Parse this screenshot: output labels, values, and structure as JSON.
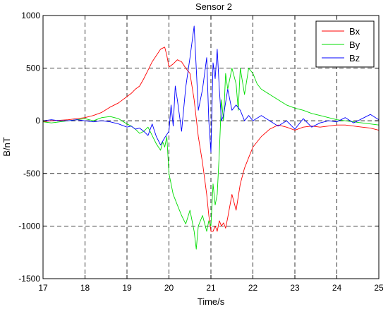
{
  "chart_data": {
    "type": "line",
    "title": "Sensor 2",
    "xlabel": "Time/s",
    "ylabel": "B/nT",
    "xlim": [
      17,
      25
    ],
    "ylim": [
      -1500,
      1000
    ],
    "xticks": [
      17,
      18,
      19,
      20,
      21,
      22,
      23,
      24,
      25
    ],
    "yticks": [
      -1500,
      -1000,
      -500,
      0,
      500,
      1000
    ],
    "grid": true,
    "legend_position": "top-right",
    "series": [
      {
        "name": "Bx",
        "color": "#ff0000",
        "x": [
          17.0,
          17.2,
          17.4,
          17.6,
          17.8,
          18.0,
          18.2,
          18.4,
          18.6,
          18.8,
          19.0,
          19.1,
          19.2,
          19.3,
          19.4,
          19.5,
          19.6,
          19.7,
          19.8,
          19.9,
          19.95,
          20.0,
          20.1,
          20.2,
          20.3,
          20.4,
          20.5,
          20.6,
          20.7,
          20.8,
          20.9,
          20.95,
          21.0,
          21.05,
          21.1,
          21.15,
          21.2,
          21.25,
          21.3,
          21.35,
          21.4,
          21.5,
          21.6,
          21.7,
          21.8,
          21.9,
          22.0,
          22.1,
          22.2,
          22.4,
          22.6,
          22.8,
          23.0,
          23.2,
          23.4,
          23.6,
          23.8,
          24.0,
          24.2,
          24.4,
          24.6,
          24.8,
          25.0
        ],
        "y": [
          -10,
          0,
          5,
          10,
          20,
          30,
          50,
          80,
          130,
          170,
          230,
          260,
          300,
          330,
          400,
          480,
          560,
          620,
          680,
          700,
          620,
          510,
          540,
          580,
          560,
          500,
          450,
          200,
          -150,
          -400,
          -700,
          -900,
          -1050,
          -1050,
          -1000,
          -1050,
          -950,
          -1000,
          -970,
          -1020,
          -920,
          -700,
          -850,
          -600,
          -450,
          -350,
          -250,
          -200,
          -150,
          -80,
          -40,
          -60,
          -90,
          -60,
          -50,
          -60,
          -50,
          -40,
          -40,
          -50,
          -60,
          -70,
          -90
        ]
      },
      {
        "name": "By",
        "color": "#00dd00",
        "x": [
          17.0,
          17.2,
          17.4,
          17.6,
          17.8,
          18.0,
          18.2,
          18.4,
          18.6,
          18.8,
          19.0,
          19.1,
          19.2,
          19.3,
          19.4,
          19.5,
          19.6,
          19.7,
          19.8,
          19.85,
          19.9,
          19.95,
          20.0,
          20.1,
          20.2,
          20.3,
          20.4,
          20.5,
          20.6,
          20.65,
          20.7,
          20.8,
          20.9,
          20.95,
          21.0,
          21.05,
          21.1,
          21.15,
          21.2,
          21.25,
          21.3,
          21.35,
          21.4,
          21.5,
          21.6,
          21.65,
          21.7,
          21.8,
          21.9,
          22.0,
          22.1,
          22.2,
          22.4,
          22.6,
          22.8,
          23.0,
          23.2,
          23.4,
          23.6,
          23.8,
          24.0,
          24.2,
          24.4,
          24.6,
          24.8,
          25.0
        ],
        "y": [
          -10,
          -20,
          -10,
          0,
          10,
          20,
          0,
          30,
          40,
          20,
          -30,
          -50,
          -80,
          -120,
          -100,
          -60,
          -140,
          -220,
          -280,
          -200,
          -250,
          -150,
          -500,
          -700,
          -800,
          -900,
          -980,
          -850,
          -1050,
          -1220,
          -1000,
          -900,
          -1050,
          -950,
          -1000,
          -600,
          -800,
          -700,
          -300,
          200,
          0,
          450,
          300,
          500,
          350,
          100,
          500,
          250,
          500,
          450,
          350,
          300,
          250,
          200,
          150,
          120,
          100,
          70,
          50,
          30,
          10,
          0,
          -10,
          -20,
          -30,
          -40
        ]
      },
      {
        "name": "Bz",
        "color": "#0000ff",
        "x": [
          17.0,
          17.2,
          17.4,
          17.6,
          17.8,
          18.0,
          18.2,
          18.4,
          18.6,
          18.8,
          19.0,
          19.1,
          19.2,
          19.3,
          19.4,
          19.5,
          19.6,
          19.7,
          19.8,
          19.9,
          20.0,
          20.05,
          20.1,
          20.15,
          20.2,
          20.3,
          20.4,
          20.5,
          20.6,
          20.65,
          20.7,
          20.8,
          20.9,
          20.95,
          21.0,
          21.05,
          21.1,
          21.15,
          21.2,
          21.25,
          21.3,
          21.4,
          21.5,
          21.6,
          21.7,
          21.8,
          21.9,
          22.0,
          22.2,
          22.4,
          22.6,
          22.8,
          23.0,
          23.2,
          23.4,
          23.6,
          23.8,
          24.0,
          24.2,
          24.4,
          24.6,
          24.8,
          25.0
        ],
        "y": [
          0,
          10,
          0,
          0,
          10,
          0,
          -10,
          0,
          -10,
          -30,
          -60,
          -50,
          -80,
          -70,
          -100,
          -140,
          -30,
          -150,
          -230,
          -160,
          -100,
          150,
          -50,
          330,
          200,
          -100,
          320,
          600,
          900,
          500,
          100,
          300,
          600,
          0,
          -300,
          550,
          400,
          680,
          300,
          0,
          50,
          300,
          100,
          150,
          100,
          0,
          50,
          0,
          50,
          0,
          -50,
          0,
          -80,
          20,
          -60,
          -20,
          0,
          -10,
          30,
          -20,
          20,
          60,
          10
        ]
      }
    ]
  }
}
